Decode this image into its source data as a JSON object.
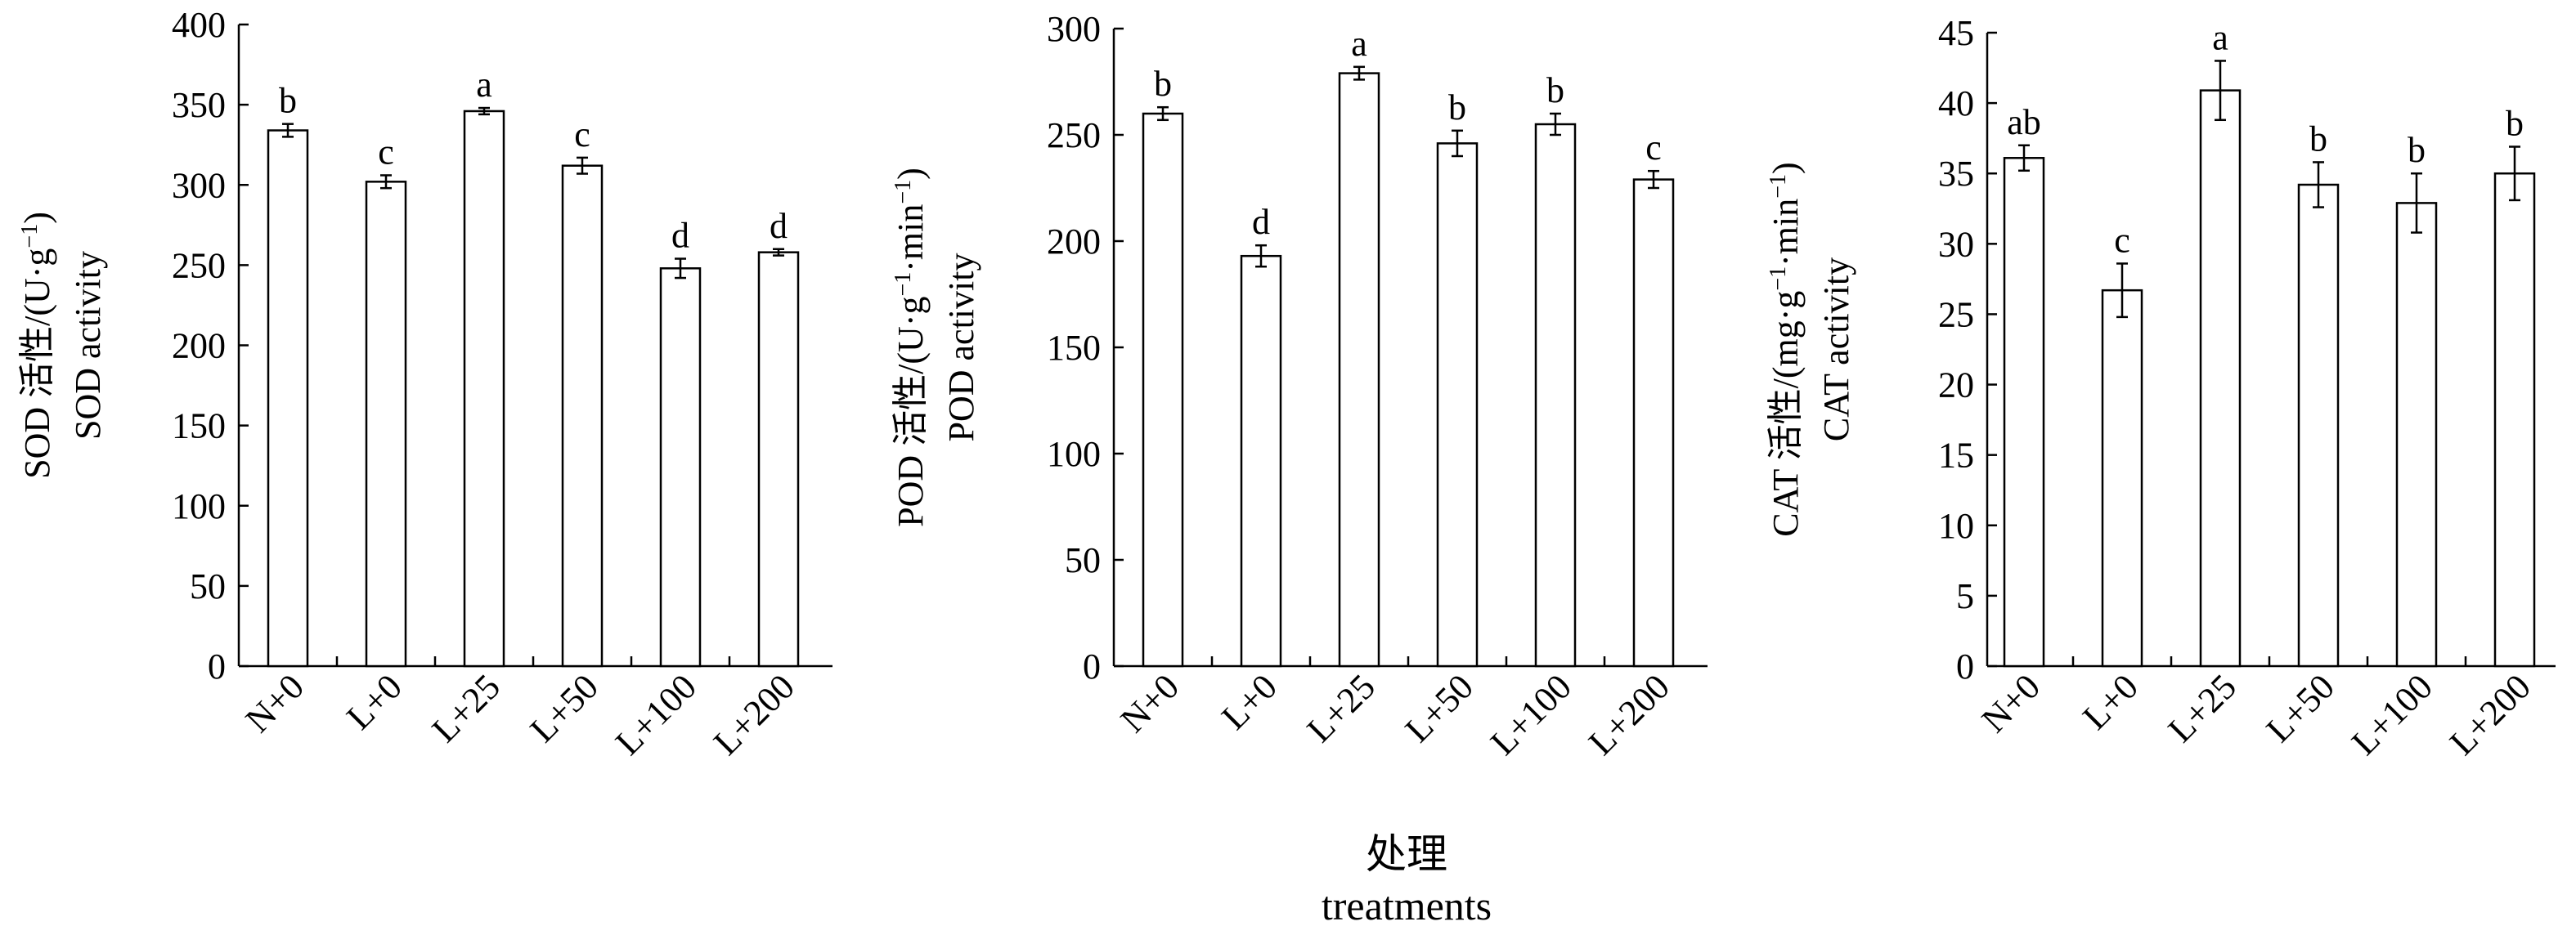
{
  "x_title_cn": "处理",
  "x_title_en": "treatments",
  "chart_data": [
    {
      "type": "bar",
      "categories": [
        "N+0",
        "L+0",
        "L+25",
        "L+50",
        "L+100",
        "L+200"
      ],
      "values": [
        334,
        302,
        346,
        312,
        248,
        258
      ],
      "errors": [
        4,
        4,
        2,
        5,
        6,
        2
      ],
      "significance": [
        "b",
        "c",
        "a",
        "c",
        "d",
        "d"
      ],
      "ylim": [
        0,
        400
      ],
      "yticks": [
        0,
        50,
        100,
        150,
        200,
        250,
        300,
        350,
        400
      ],
      "ylabel_main": "SOD 活性/(U·g",
      "ylabel_sup": "−1",
      "ylabel_end": ")",
      "ylabel_en": "SOD activity"
    },
    {
      "type": "bar",
      "categories": [
        "N+0",
        "L+0",
        "L+25",
        "L+50",
        "L+100",
        "L+200"
      ],
      "values": [
        260,
        193,
        279,
        246,
        255,
        229
      ],
      "errors": [
        3,
        5,
        3,
        6,
        5,
        4
      ],
      "significance": [
        "b",
        "d",
        "a",
        "b",
        "b",
        "c"
      ],
      "ylim": [
        0,
        300
      ],
      "yticks": [
        0,
        50,
        100,
        150,
        200,
        250,
        300
      ],
      "ylabel_main": "POD 活性/(U·g",
      "ylabel_sup": "−1",
      "ylabel_mid": "·min",
      "ylabel_sup2": "−1",
      "ylabel_end": ")",
      "ylabel_en": "POD activity"
    },
    {
      "type": "bar",
      "categories": [
        "N+0",
        "L+0",
        "L+25",
        "L+50",
        "L+100",
        "L+200"
      ],
      "values": [
        36.1,
        26.7,
        40.9,
        34.2,
        32.9,
        35.0
      ],
      "errors": [
        0.9,
        1.9,
        2.1,
        1.6,
        2.1,
        1.9
      ],
      "significance": [
        "ab",
        "c",
        "a",
        "b",
        "b",
        "b"
      ],
      "ylim": [
        0,
        45
      ],
      "yticks": [
        0,
        5,
        10,
        15,
        20,
        25,
        30,
        35,
        40,
        45
      ],
      "ylabel_main": "CAT 活性/(mg·g",
      "ylabel_sup": "−1",
      "ylabel_mid": "·min",
      "ylabel_sup2": "−1",
      "ylabel_end": ")",
      "ylabel_en": "CAT activity"
    }
  ]
}
